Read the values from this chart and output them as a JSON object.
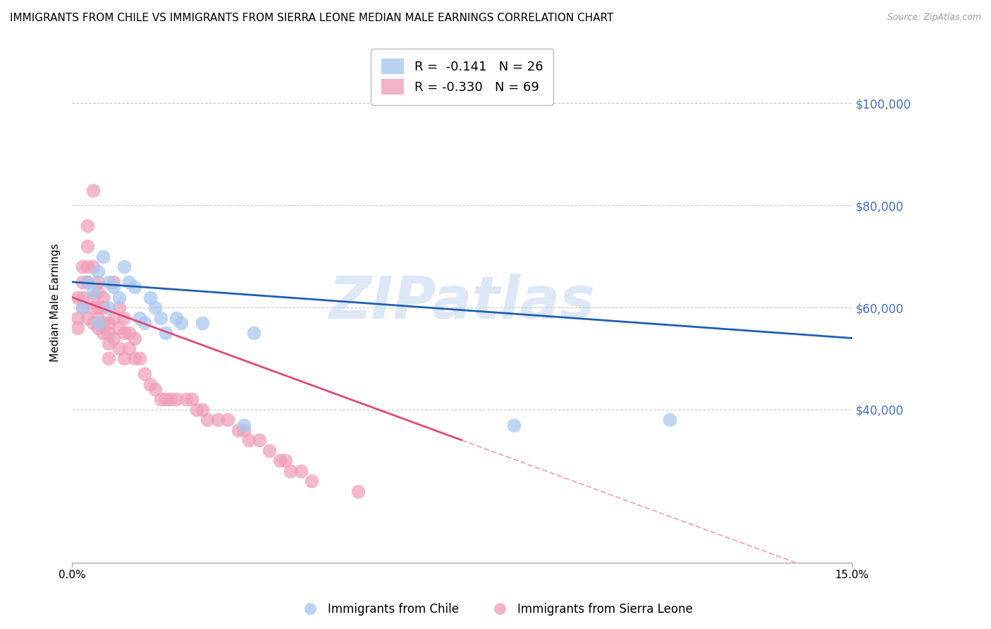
{
  "title": "IMMIGRANTS FROM CHILE VS IMMIGRANTS FROM SIERRA LEONE MEDIAN MALE EARNINGS CORRELATION CHART",
  "source": "Source: ZipAtlas.com",
  "ylabel": "Median Male Earnings",
  "y_tick_labels": [
    "$40,000",
    "$60,000",
    "$80,000",
    "$100,000"
  ],
  "y_tick_values": [
    40000,
    60000,
    80000,
    100000
  ],
  "y_label_color": "#4472c4",
  "watermark_text": "ZIPatlas",
  "watermark_color": "#c8d8f0",
  "chile_label": "Immigrants from Chile",
  "sierra_leone_label": "Immigrants from Sierra Leone",
  "chile_scatter_color": "#a8c8f0",
  "sierra_leone_scatter_color": "#f0a0b8",
  "chile_trend_color": "#2060b0",
  "sierra_leone_trend_color": "#e04878",
  "sierra_leone_trend_dashed_color": "#f0b0c0",
  "background": "#ffffff",
  "chile_x": [
    0.002,
    0.003,
    0.004,
    0.005,
    0.005,
    0.006,
    0.007,
    0.007,
    0.008,
    0.009,
    0.01,
    0.011,
    0.012,
    0.013,
    0.014,
    0.015,
    0.016,
    0.017,
    0.018,
    0.02,
    0.021,
    0.025,
    0.033,
    0.035,
    0.085,
    0.115
  ],
  "chile_y": [
    60000,
    65000,
    63000,
    57000,
    67000,
    70000,
    65000,
    60000,
    64000,
    62000,
    68000,
    65000,
    64000,
    58000,
    57000,
    62000,
    60000,
    58000,
    55000,
    58000,
    57000,
    57000,
    37000,
    55000,
    37000,
    38000
  ],
  "sierra_leone_x": [
    0.001,
    0.001,
    0.001,
    0.002,
    0.002,
    0.002,
    0.002,
    0.003,
    0.003,
    0.003,
    0.003,
    0.003,
    0.004,
    0.004,
    0.004,
    0.004,
    0.004,
    0.005,
    0.005,
    0.005,
    0.005,
    0.005,
    0.006,
    0.006,
    0.006,
    0.006,
    0.007,
    0.007,
    0.007,
    0.007,
    0.008,
    0.008,
    0.008,
    0.009,
    0.009,
    0.009,
    0.01,
    0.01,
    0.01,
    0.011,
    0.011,
    0.012,
    0.012,
    0.013,
    0.014,
    0.015,
    0.016,
    0.017,
    0.018,
    0.019,
    0.02,
    0.022,
    0.023,
    0.024,
    0.025,
    0.026,
    0.028,
    0.03,
    0.032,
    0.033,
    0.034,
    0.036,
    0.038,
    0.04,
    0.041,
    0.042,
    0.044,
    0.046,
    0.055
  ],
  "sierra_leone_y": [
    62000,
    58000,
    56000,
    68000,
    65000,
    62000,
    60000,
    76000,
    72000,
    68000,
    65000,
    58000,
    83000,
    68000,
    62000,
    60000,
    57000,
    65000,
    63000,
    60000,
    58000,
    56000,
    62000,
    60000,
    57000,
    55000,
    57000,
    55000,
    53000,
    50000,
    65000,
    58000,
    54000,
    60000,
    56000,
    52000,
    58000,
    55000,
    50000,
    55000,
    52000,
    54000,
    50000,
    50000,
    47000,
    45000,
    44000,
    42000,
    42000,
    42000,
    42000,
    42000,
    42000,
    40000,
    40000,
    38000,
    38000,
    38000,
    36000,
    36000,
    34000,
    34000,
    32000,
    30000,
    30000,
    28000,
    28000,
    26000,
    24000
  ],
  "xlim": [
    0.0,
    0.15
  ],
  "ylim": [
    10000,
    112000
  ],
  "title_fontsize": 11,
  "axis_label_fontsize": 11,
  "tick_fontsize": 11,
  "legend_fontsize": 13
}
